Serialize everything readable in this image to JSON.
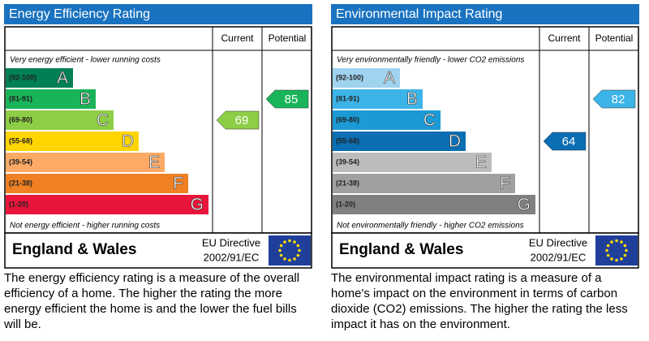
{
  "chart_data": [
    {
      "type": "epc",
      "title": "Energy Efficiency Rating",
      "column_headers": [
        "Current",
        "Potential"
      ],
      "top_note": "Very energy efficient - lower running costs",
      "bottom_note": "Not energy efficient - higher running costs",
      "bands": [
        {
          "range": "(92-100)",
          "letter": "A",
          "color": "#008054"
        },
        {
          "range": "(81-91)",
          "letter": "B",
          "color": "#19b459"
        },
        {
          "range": "(69-80)",
          "letter": "C",
          "color": "#8dce46"
        },
        {
          "range": "(55-68)",
          "letter": "D",
          "color": "#ffd500"
        },
        {
          "range": "(39-54)",
          "letter": "E",
          "color": "#fcaa65"
        },
        {
          "range": "(21-38)",
          "letter": "F",
          "color": "#ef8023"
        },
        {
          "range": "(1-20)",
          "letter": "G",
          "color": "#e9153b"
        }
      ],
      "current": 69,
      "potential": 85,
      "region": "England & Wales",
      "directive": [
        "EU Directive",
        "2002/91/EC"
      ],
      "description": "The energy efficiency rating is a measure of the overall efficiency of a home.  The higher the rating the more energy efficient the home is and the lower the fuel bills will be."
    },
    {
      "type": "epc",
      "title": "Environmental Impact Rating",
      "column_headers": [
        "Current",
        "Potential"
      ],
      "top_note": "Very environmentally friendly - lower CO2 emissions",
      "bottom_note": "Not environmentally friendly - higher CO2 emissions",
      "bands": [
        {
          "range": "(92-100)",
          "letter": "A",
          "color": "#9fd3f0"
        },
        {
          "range": "(81-91)",
          "letter": "B",
          "color": "#3cb4e8"
        },
        {
          "range": "(69-80)",
          "letter": "C",
          "color": "#1c9ad6"
        },
        {
          "range": "(55-68)",
          "letter": "D",
          "color": "#0a6eb4"
        },
        {
          "range": "(39-54)",
          "letter": "E",
          "color": "#bcbcbc"
        },
        {
          "range": "(21-38)",
          "letter": "F",
          "color": "#a0a0a0"
        },
        {
          "range": "(1-20)",
          "letter": "G",
          "color": "#808080"
        }
      ],
      "current": 64,
      "potential": 82,
      "region": "England & Wales",
      "directive": [
        "EU Directive",
        "2002/91/EC"
      ],
      "description": "The environmental impact rating is a measure of a home's impact on the environment in terms of carbon dioxide (CO2) emissions.  The higher the rating the less impact it has on the environment."
    }
  ]
}
